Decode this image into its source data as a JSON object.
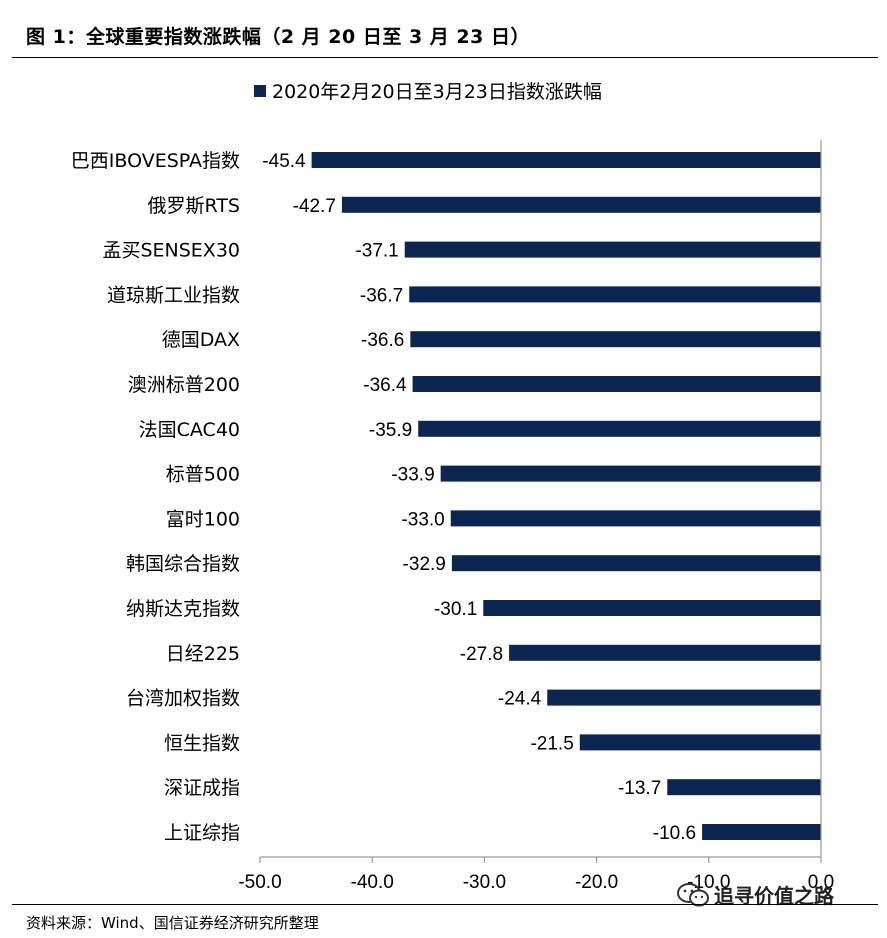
{
  "figure": {
    "title": "图 1：全球重要指数涨跌幅（2 月 20 日至 3 月 23 日）",
    "source": "资料来源：Wind、国信证券经济研究所整理",
    "watermark": "追寻价值之路"
  },
  "chart_data": {
    "type": "bar",
    "orientation": "horizontal",
    "categories": [
      "巴西IBOVESPA指数",
      "俄罗斯RTS",
      "孟买SENSEX30",
      "道琼斯工业指数",
      "德国DAX",
      "澳洲标普200",
      "法国CAC40",
      "标普500",
      "富时100",
      "韩国综合指数",
      "纳斯达克指数",
      "日经225",
      "台湾加权指数",
      "恒生指数",
      "深证成指",
      "上证综指"
    ],
    "series": [
      {
        "name": "2020年2月20日至3月23日指数涨跌幅",
        "values": [
          -45.4,
          -42.7,
          -37.1,
          -36.7,
          -36.6,
          -36.4,
          -35.9,
          -33.9,
          -33.0,
          -32.9,
          -30.1,
          -27.8,
          -24.4,
          -21.5,
          -13.7,
          -10.6
        ],
        "labels": [
          "-45.4",
          "-42.7",
          "-37.1",
          "-36.7",
          "-36.6",
          "-36.4",
          "-35.9",
          "-33.9",
          "-33.0",
          "-32.9",
          "-30.1",
          "-27.8",
          "-24.4",
          "-21.5",
          "-13.7",
          "-10.6"
        ],
        "color": "#0d2651"
      }
    ],
    "xlim": [
      -50,
      0
    ],
    "xticks": [
      -50,
      -40,
      -30,
      -20,
      -10,
      0
    ],
    "xtick_labels": [
      "-50.0",
      "-40.0",
      "-30.0",
      "-20.0",
      "-10.0",
      "0.0"
    ],
    "grid": false,
    "legend_position": "top"
  }
}
